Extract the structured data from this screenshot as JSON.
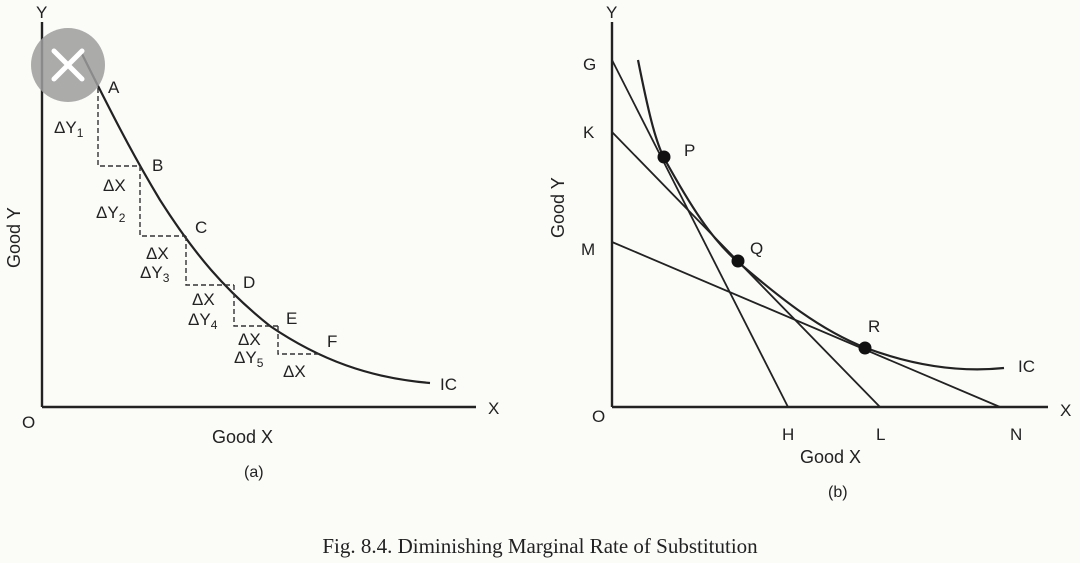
{
  "caption": "Fig. 8.4. Diminishing Marginal Rate of Substitution",
  "close_icon": "close-icon",
  "panel_a": {
    "sublabel": "(a)",
    "x_axis_letter": "X",
    "y_axis_letter": "Y",
    "origin": "O",
    "x_label": "Good X",
    "y_label": "Good Y",
    "curve_label": "IC",
    "points": [
      "A",
      "B",
      "C",
      "D",
      "E",
      "F"
    ],
    "delta_y": [
      "ΔY",
      "ΔY",
      "ΔY",
      "ΔY",
      "ΔY"
    ],
    "delta_y_subs": [
      "1",
      "2",
      "3",
      "4",
      "5"
    ],
    "delta_x": [
      "ΔX",
      "ΔX",
      "ΔX",
      "ΔX",
      "ΔX"
    ]
  },
  "panel_b": {
    "sublabel": "(b)",
    "x_axis_letter": "X",
    "y_axis_letter": "Y",
    "origin": "O",
    "x_label": "Good X",
    "y_label": "Good Y",
    "curve_label": "IC",
    "points": [
      "P",
      "Q",
      "R"
    ],
    "y_intercepts": [
      "G",
      "K",
      "M"
    ],
    "x_intercepts": [
      "H",
      "L",
      "N"
    ]
  }
}
